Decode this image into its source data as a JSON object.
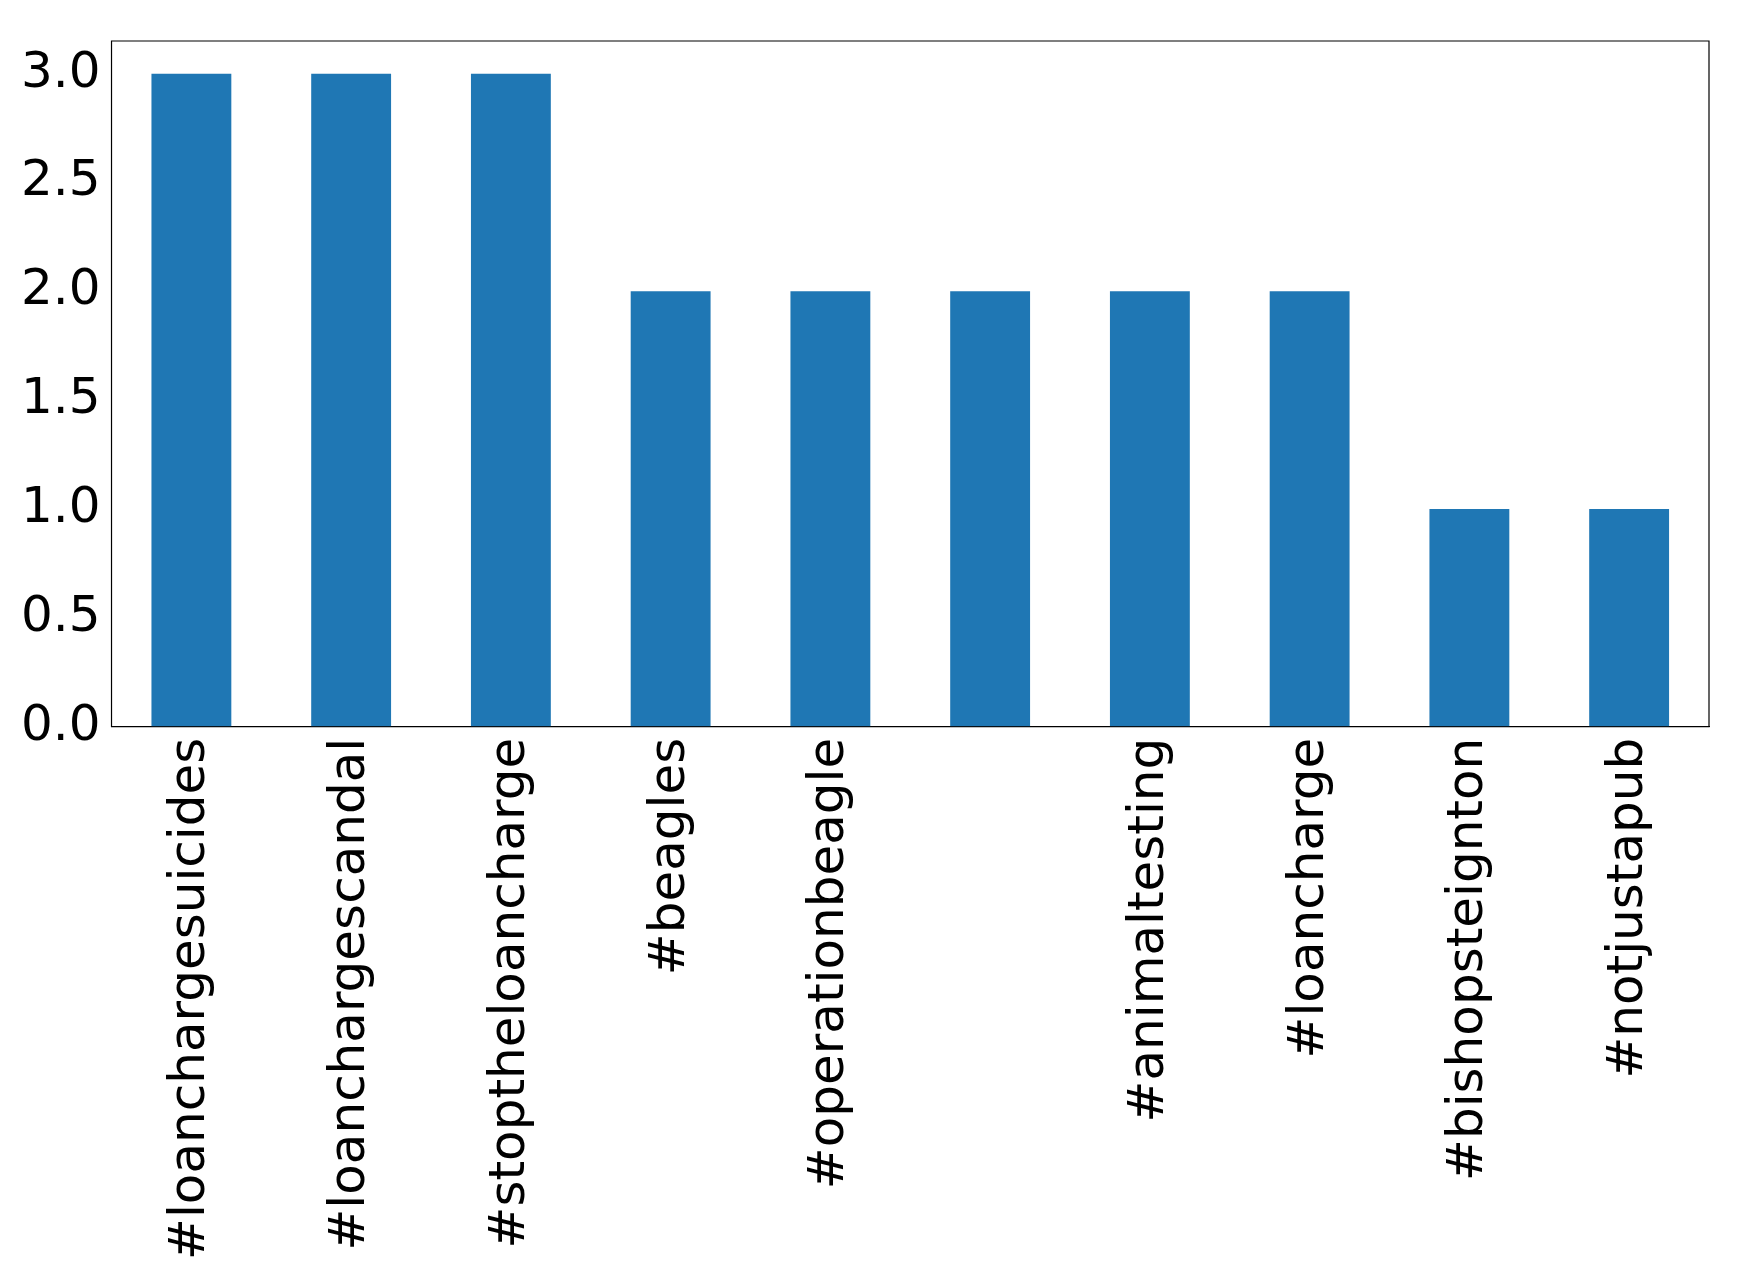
{
  "chart_data": {
    "type": "bar",
    "categories": [
      "#loanchargesuicides",
      "#loanchargescandal",
      "#stoptheloancharge",
      "#beagles",
      "#operationbeagle",
      null,
      "#animaltesting",
      "#loancharge",
      "#bishopsteignton",
      "#notjustapub"
    ],
    "values": [
      3,
      3,
      3,
      2,
      2,
      2,
      2,
      2,
      1,
      1
    ],
    "color": "#1f77b4",
    "ylim": [
      0,
      3.15
    ],
    "yticks": [
      {
        "value": 0,
        "label": "0.0"
      },
      {
        "value": 0.5,
        "label": "0.5"
      },
      {
        "value": 1,
        "label": "1.0"
      },
      {
        "value": 1.5,
        "label": "1.5"
      },
      {
        "value": 2,
        "label": "2.0"
      },
      {
        "value": 2.5,
        "label": "2.5"
      },
      {
        "value": 3,
        "label": "3.0"
      }
    ],
    "grid": false,
    "legend": false
  }
}
